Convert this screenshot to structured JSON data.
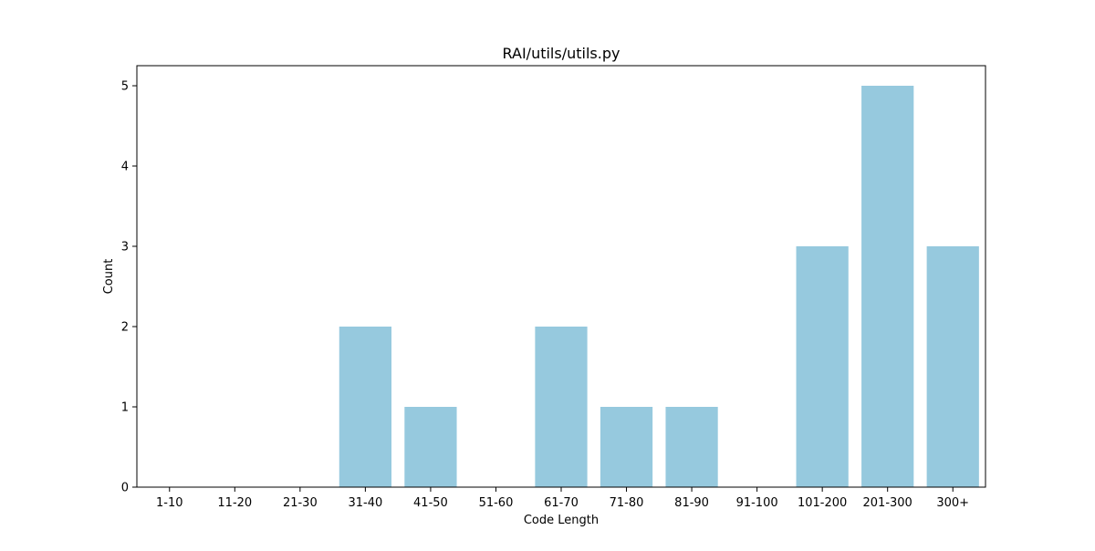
{
  "chart_data": {
    "type": "bar",
    "title": "RAI/utils/utils.py",
    "xlabel": "Code Length",
    "ylabel": "Count",
    "categories": [
      "1-10",
      "11-20",
      "21-30",
      "31-40",
      "41-50",
      "51-60",
      "61-70",
      "71-80",
      "81-90",
      "91-100",
      "101-200",
      "201-300",
      "300+"
    ],
    "values": [
      0,
      0,
      0,
      2,
      1,
      0,
      2,
      1,
      1,
      0,
      3,
      5,
      3
    ],
    "ylim": [
      0,
      5.25
    ],
    "yticks": [
      0,
      1,
      2,
      3,
      4,
      5
    ],
    "grid": false,
    "legend": "none",
    "bar_color": "#96c9de"
  }
}
